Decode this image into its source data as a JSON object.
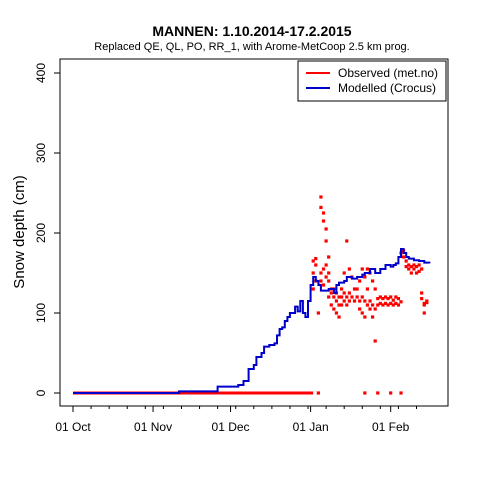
{
  "chart_data": {
    "type": "line",
    "title": "MANNEN: 1.10.2014-17.2.2015",
    "subtitle": "Replaced QE, QL, PO, RR_1,  with Arome-MetCoop 2.5 km prog.",
    "ylabel": "Snow depth (cm)",
    "xlabel": "",
    "x_start_date": "2014-10-01",
    "x_end_date": "2015-02-17",
    "ylim": [
      -15,
      415
    ],
    "y_ticks": [
      "0",
      "100",
      "200",
      "300",
      "400"
    ],
    "x_ticks": [
      {
        "date": "2014-10-01",
        "label": "01 Oct"
      },
      {
        "date": "2014-11-01",
        "label": "01 Nov"
      },
      {
        "date": "2014-12-01",
        "label": "01 Dec"
      },
      {
        "date": "2015-01-01",
        "label": "01 Jan"
      },
      {
        "date": "2015-02-01",
        "label": "01 Feb"
      }
    ],
    "grid": false,
    "legend_position": "top-right",
    "series": [
      {
        "name": "Observed (met.no)",
        "color": "#ff0000",
        "style": "points",
        "segments": [
          {
            "from": "2014-10-01",
            "to": "2015-01-02",
            "value": 0
          }
        ],
        "points": [
          [
            "2015-01-02",
            130
          ],
          [
            "2015-01-02",
            150
          ],
          [
            "2015-01-02",
            165
          ],
          [
            "2015-01-03",
            140
          ],
          [
            "2015-01-03",
            160
          ],
          [
            "2015-01-03",
            168
          ],
          [
            "2015-01-04",
            100
          ],
          [
            "2015-01-04",
            0
          ],
          [
            "2015-01-05",
            245
          ],
          [
            "2015-01-05",
            232
          ],
          [
            "2015-01-05",
            150
          ],
          [
            "2015-01-05",
            140
          ],
          [
            "2015-01-06",
            225
          ],
          [
            "2015-01-06",
            215
          ],
          [
            "2015-01-06",
            155
          ],
          [
            "2015-01-06",
            135
          ],
          [
            "2015-01-07",
            205
          ],
          [
            "2015-01-07",
            190
          ],
          [
            "2015-01-07",
            145
          ],
          [
            "2015-01-07",
            160
          ],
          [
            "2015-01-08",
            170
          ],
          [
            "2015-01-08",
            150
          ],
          [
            "2015-01-08",
            140
          ],
          [
            "2015-01-08",
            120
          ],
          [
            "2015-01-09",
            125
          ],
          [
            "2015-01-09",
            110
          ],
          [
            "2015-01-09",
            130
          ],
          [
            "2015-01-10",
            120
          ],
          [
            "2015-01-10",
            105
          ],
          [
            "2015-01-10",
            130
          ],
          [
            "2015-01-11",
            115
          ],
          [
            "2015-01-11",
            125
          ],
          [
            "2015-01-11",
            100
          ],
          [
            "2015-01-12",
            120
          ],
          [
            "2015-01-12",
            110
          ],
          [
            "2015-01-12",
            95
          ],
          [
            "2015-01-13",
            120
          ],
          [
            "2015-01-13",
            130
          ],
          [
            "2015-01-13",
            110
          ],
          [
            "2015-01-14",
            115
          ],
          [
            "2015-01-14",
            125
          ],
          [
            "2015-01-14",
            150
          ],
          [
            "2015-01-15",
            190
          ],
          [
            "2015-01-15",
            120
          ],
          [
            "2015-01-15",
            110
          ],
          [
            "2015-01-16",
            155
          ],
          [
            "2015-01-16",
            125
          ],
          [
            "2015-01-16",
            115
          ],
          [
            "2015-01-17",
            145
          ],
          [
            "2015-01-17",
            120
          ],
          [
            "2015-01-18",
            130
          ],
          [
            "2015-01-18",
            115
          ],
          [
            "2015-01-19",
            130
          ],
          [
            "2015-01-19",
            120
          ],
          [
            "2015-01-20",
            115
          ],
          [
            "2015-01-20",
            140
          ],
          [
            "2015-01-20",
            105
          ],
          [
            "2015-01-21",
            155
          ],
          [
            "2015-01-21",
            120
          ],
          [
            "2015-01-21",
            100
          ],
          [
            "2015-01-22",
            145
          ],
          [
            "2015-01-22",
            115
          ],
          [
            "2015-01-22",
            95
          ],
          [
            "2015-01-22",
            0
          ],
          [
            "2015-01-23",
            155
          ],
          [
            "2015-01-23",
            130
          ],
          [
            "2015-01-23",
            110
          ],
          [
            "2015-01-24",
            150
          ],
          [
            "2015-01-24",
            105
          ],
          [
            "2015-01-24",
            115
          ],
          [
            "2015-01-25",
            140
          ],
          [
            "2015-01-25",
            110
          ],
          [
            "2015-01-25",
            95
          ],
          [
            "2015-01-26",
            130
          ],
          [
            "2015-01-26",
            105
          ],
          [
            "2015-01-26",
            65
          ],
          [
            "2015-01-27",
            0
          ],
          [
            "2015-01-27",
            110
          ],
          [
            "2015-01-27",
            118
          ],
          [
            "2015-01-28",
            112
          ],
          [
            "2015-01-28",
            120
          ],
          [
            "2015-01-29",
            110
          ],
          [
            "2015-01-29",
            118
          ],
          [
            "2015-01-30",
            112
          ],
          [
            "2015-01-30",
            120
          ],
          [
            "2015-01-31",
            110
          ],
          [
            "2015-01-31",
            118
          ],
          [
            "2015-02-01",
            0
          ],
          [
            "2015-02-01",
            112
          ],
          [
            "2015-02-01",
            120
          ],
          [
            "2015-02-02",
            110
          ],
          [
            "2015-02-02",
            116
          ],
          [
            "2015-02-03",
            112
          ],
          [
            "2015-02-03",
            120
          ],
          [
            "2015-02-04",
            110
          ],
          [
            "2015-02-04",
            118
          ],
          [
            "2015-02-05",
            0
          ],
          [
            "2015-02-05",
            114
          ],
          [
            "2015-02-05",
            175
          ],
          [
            "2015-02-06",
            178
          ],
          [
            "2015-02-06",
            170
          ],
          [
            "2015-02-07",
            165
          ],
          [
            "2015-02-07",
            158
          ],
          [
            "2015-02-08",
            160
          ],
          [
            "2015-02-08",
            155
          ],
          [
            "2015-02-09",
            158
          ],
          [
            "2015-02-09",
            150
          ],
          [
            "2015-02-10",
            160
          ],
          [
            "2015-02-10",
            155
          ],
          [
            "2015-02-11",
            158
          ],
          [
            "2015-02-11",
            150
          ],
          [
            "2015-02-12",
            160
          ],
          [
            "2015-02-12",
            152
          ],
          [
            "2015-02-13",
            155
          ],
          [
            "2015-02-13",
            125
          ],
          [
            "2015-02-13",
            118
          ],
          [
            "2015-02-14",
            110
          ],
          [
            "2015-02-14",
            100
          ],
          [
            "2015-02-14",
            112
          ],
          [
            "2015-02-15",
            113
          ],
          [
            "2015-02-15",
            115
          ]
        ]
      },
      {
        "name": "Modelled (Crocus)",
        "color": "#0000cc",
        "style": "step",
        "points": [
          [
            "2014-10-01",
            0
          ],
          [
            "2014-11-10",
            0
          ],
          [
            "2014-11-11",
            2
          ],
          [
            "2014-11-26",
            3
          ],
          [
            "2014-11-26",
            8
          ],
          [
            "2014-12-04",
            10
          ],
          [
            "2014-12-06",
            15
          ],
          [
            "2014-12-08",
            30
          ],
          [
            "2014-12-10",
            35
          ],
          [
            "2014-12-11",
            45
          ],
          [
            "2014-12-13",
            50
          ],
          [
            "2014-12-14",
            58
          ],
          [
            "2014-12-16",
            60
          ],
          [
            "2014-12-18",
            62
          ],
          [
            "2014-12-19",
            72
          ],
          [
            "2014-12-20",
            80
          ],
          [
            "2014-12-21",
            82
          ],
          [
            "2014-12-22",
            90
          ],
          [
            "2014-12-23",
            95
          ],
          [
            "2014-12-24",
            100
          ],
          [
            "2014-12-26",
            108
          ],
          [
            "2014-12-27",
            102
          ],
          [
            "2014-12-28",
            115
          ],
          [
            "2014-12-29",
            100
          ],
          [
            "2014-12-30",
            95
          ],
          [
            "2014-12-31",
            115
          ],
          [
            "2015-01-01",
            135
          ],
          [
            "2015-01-02",
            145
          ],
          [
            "2015-01-03",
            140
          ],
          [
            "2015-01-04",
            135
          ],
          [
            "2015-01-05",
            128
          ],
          [
            "2015-01-06",
            128
          ],
          [
            "2015-01-08",
            130
          ],
          [
            "2015-01-10",
            125
          ],
          [
            "2015-01-11",
            135
          ],
          [
            "2015-01-12",
            138
          ],
          [
            "2015-01-14",
            140
          ],
          [
            "2015-01-15",
            145
          ],
          [
            "2015-01-17",
            143
          ],
          [
            "2015-01-19",
            145
          ],
          [
            "2015-01-21",
            148
          ],
          [
            "2015-01-22",
            150
          ],
          [
            "2015-01-24",
            155
          ],
          [
            "2015-01-26",
            150
          ],
          [
            "2015-01-28",
            155
          ],
          [
            "2015-01-30",
            160
          ],
          [
            "2015-02-01",
            158
          ],
          [
            "2015-02-02",
            160
          ],
          [
            "2015-02-03",
            162
          ],
          [
            "2015-02-04",
            170
          ],
          [
            "2015-02-05",
            180
          ],
          [
            "2015-02-06",
            175
          ],
          [
            "2015-02-07",
            170
          ],
          [
            "2015-02-08",
            168
          ],
          [
            "2015-02-10",
            166
          ],
          [
            "2015-02-12",
            165
          ],
          [
            "2015-02-14",
            163
          ],
          [
            "2015-02-16",
            162
          ]
        ]
      }
    ]
  }
}
